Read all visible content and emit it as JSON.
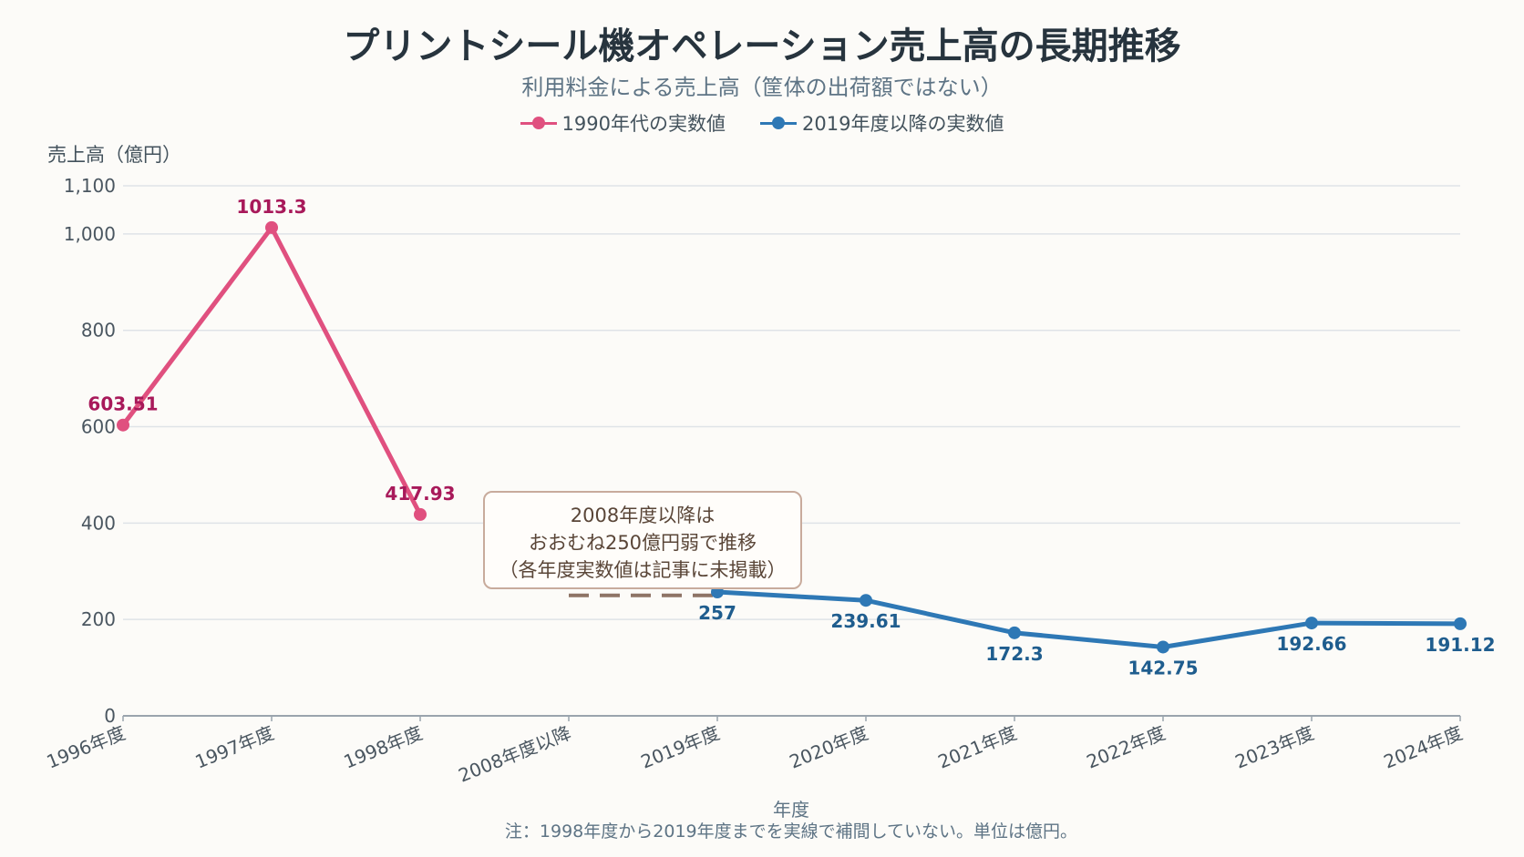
{
  "colors": {
    "series_1990s": "#e0507f",
    "series_1990s_label": "#a8195a",
    "series_2019": "#2e78b5",
    "series_2019_label": "#1f5d8e",
    "gap_dash": "#8e7466",
    "grid": "#dfe3e7",
    "axis": "#9aa4ad"
  },
  "title": "プリントシール機オペレーション売上高の長期推移",
  "subtitle": "利用料金による売上高（筐体の出荷額ではない）",
  "footnote": "注：1998年度から2019年度までを実線で補間していない。単位は億円。",
  "annotation": {
    "lines": [
      "2008年度以降は",
      "おおむね250億円弱で推移",
      "（各年度実数値は記事に未掲載）"
    ]
  },
  "chart_data": {
    "type": "line",
    "title": "プリントシール機オペレーション売上高の長期推移",
    "subtitle": "利用料金による売上高（筐体の出荷額ではない）",
    "xlabel": "年度",
    "ylabel": "売上高（億円）",
    "ylim": [
      0,
      1100
    ],
    "yticks": [
      0,
      200,
      400,
      600,
      800,
      1000,
      1100
    ],
    "ytick_labels": [
      "0",
      "200",
      "400",
      "600",
      "800",
      "1,000",
      "1,100"
    ],
    "grid": true,
    "legend_position": "top-center",
    "categories": [
      "1996年度",
      "1997年度",
      "1998年度",
      "2008年度以降",
      "2019年度",
      "2020年度",
      "2021年度",
      "2022年度",
      "2023年度",
      "2024年度"
    ],
    "series": [
      {
        "name": "1990年代の実数値",
        "values": [
          603.51,
          1013.3,
          417.93,
          null,
          null,
          null,
          null,
          null,
          null,
          null
        ],
        "labels": [
          "603.51",
          "1013.3",
          "417.93",
          "",
          "",
          "",
          "",
          "",
          "",
          ""
        ]
      },
      {
        "name": "2019年度以降の実数値",
        "values": [
          null,
          null,
          null,
          null,
          257,
          239.61,
          172.3,
          142.75,
          192.66,
          191.12
        ],
        "labels": [
          "",
          "",
          "",
          "",
          "257",
          "239.61",
          "172.3",
          "142.75",
          "192.66",
          "191.12"
        ]
      }
    ],
    "gap_segment": {
      "from_category": "2008年度以降",
      "to_category": "2019年度",
      "value": 250,
      "style": "dashed"
    }
  }
}
